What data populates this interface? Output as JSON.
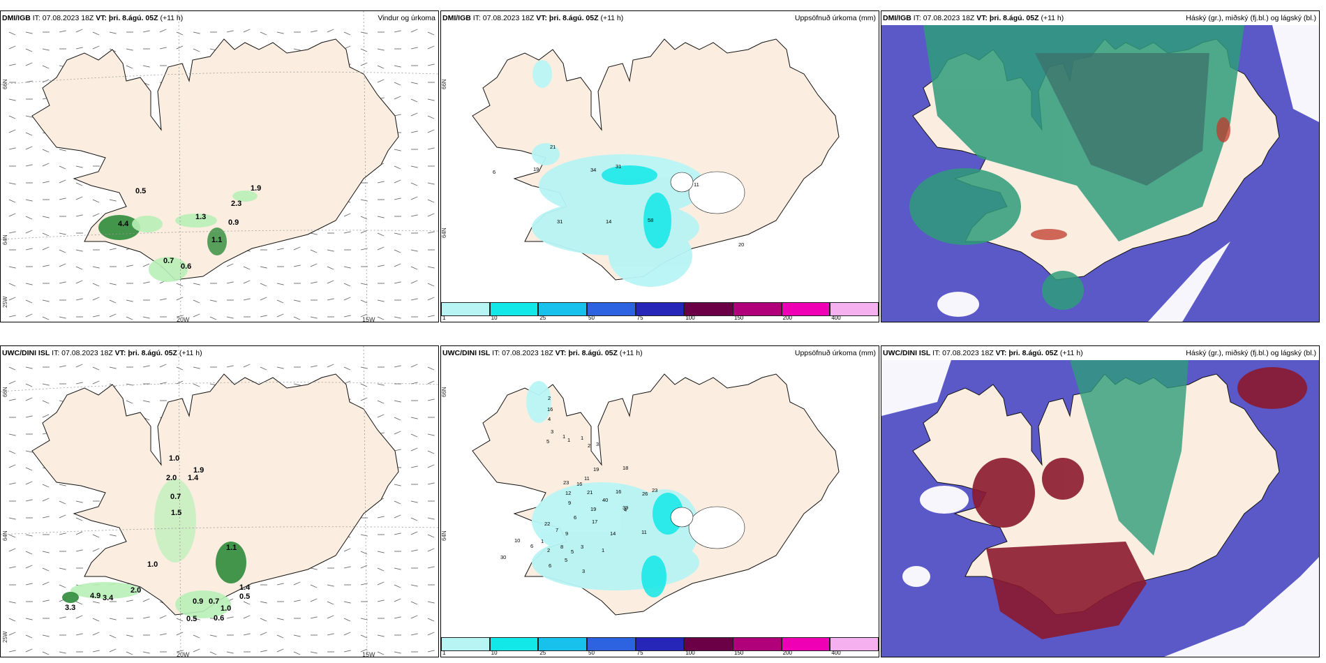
{
  "colors": {
    "land": "#fbeee0",
    "coast": "#111111",
    "precip_green": "#2e8b3a",
    "precip_light": "#b8f0b8",
    "cloud_blue": "#5b58c8",
    "cloud_green": "#2f9c7a",
    "cloud_red": "#8b1a2e"
  },
  "scale": {
    "colors": [
      "#b8f4f4",
      "#12e8e8",
      "#18c0ec",
      "#2d63e0",
      "#2626b8",
      "#6b0047",
      "#b0007a",
      "#f000b5",
      "#f5b0f0"
    ],
    "ticks": [
      "1",
      "10",
      "25",
      "50",
      "75",
      "100",
      "150",
      "200",
      "400"
    ]
  },
  "rows": [
    {
      "model": "DMI/IGB",
      "it": " IT: 07.08.2023 18Z ",
      "vt": "VT: þri. 8.ágú. 05Z",
      "lead": " (+11 h)",
      "wind_title": "Vindur og úrkoma",
      "precip_title": "Uppsöfnuð úrkoma (mm)",
      "cloud_title": "Háský (gr.), miðský (fj.bl.) og lágský (bl.)",
      "lat_labels": [
        "66N",
        "64N",
        "25W"
      ],
      "lon_labels": [
        "20W",
        "15W"
      ],
      "wind_values": [
        "0.5",
        "1.9",
        "2.3",
        "1.3",
        "0.9",
        "4.4",
        "1.1",
        "0.7",
        "0.6"
      ],
      "precip_values": [
        "21",
        "31",
        "34",
        "19",
        "6",
        "31",
        "14",
        "58",
        "11",
        "20"
      ]
    },
    {
      "model": "UWC/DINI ISL",
      "it": " IT: 07.08.2023 18Z ",
      "vt": "VT: þri. 8.ágú. 05Z",
      "lead": " (+11 h)",
      "wind_title": "",
      "precip_title": "Uppsöfnuð úrkoma (mm)",
      "cloud_title": "Háský (gr.), miðský (fj.bl.) og lágský (bl.)",
      "lat_labels": [
        "66N",
        "64N",
        "25W"
      ],
      "lon_labels": [
        "20W",
        "15W"
      ],
      "wind_values": [
        "1.0",
        "1.9",
        "2.0",
        "1.4",
        "0.7",
        "1.5",
        "1.1",
        "1.0",
        "1.4",
        "0.5",
        "2.0",
        "4.9",
        "3.4",
        "3.3",
        "0.9",
        "0.7",
        "1.0",
        "0.5",
        "0.6"
      ],
      "precip_values": [
        "2",
        "16",
        "4",
        "3",
        "1",
        "5",
        "1",
        "1",
        "2",
        "3",
        "19",
        "18",
        "23",
        "16",
        "11",
        "21",
        "12",
        "9",
        "40",
        "16",
        "26",
        "23",
        "19",
        "39",
        "4",
        "6",
        "17",
        "22",
        "7",
        "9",
        "14",
        "11",
        "30",
        "1",
        "10",
        "6",
        "8",
        "5",
        "3",
        "2",
        "5",
        "6",
        "3",
        "1"
      ]
    }
  ]
}
